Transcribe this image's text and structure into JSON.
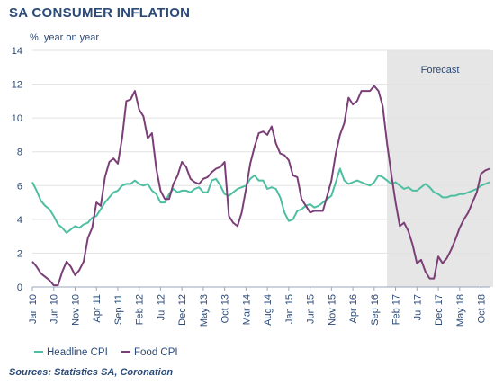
{
  "title": "SA CONSUMER INFLATION",
  "source": "Sources: Statistics SA, Coronation",
  "colors": {
    "headline": "#4dbfa0",
    "food": "#7b3f77",
    "forecast_shade": "#e6e6e6",
    "grid": "#e2e2e2",
    "text": "#2b4a78"
  },
  "chart_data": {
    "type": "line",
    "title": "SA CONSUMER INFLATION",
    "ylabel": "%, year on year",
    "ylim": [
      0,
      14
    ],
    "yticks": [
      0,
      2,
      4,
      6,
      8,
      10,
      12,
      14
    ],
    "xlim": [
      0,
      107
    ],
    "xticks": [
      {
        "i": 0,
        "label": "Jan 10"
      },
      {
        "i": 5,
        "label": "Jun 10"
      },
      {
        "i": 10,
        "label": "Nov 10"
      },
      {
        "i": 15,
        "label": "Apr 11"
      },
      {
        "i": 20,
        "label": "Sep 11"
      },
      {
        "i": 25,
        "label": "Feb 12"
      },
      {
        "i": 30,
        "label": "Jul 12"
      },
      {
        "i": 35,
        "label": "Dec 12"
      },
      {
        "i": 40,
        "label": "May 13"
      },
      {
        "i": 45,
        "label": "Oct 13"
      },
      {
        "i": 50,
        "label": "Mar 14"
      },
      {
        "i": 55,
        "label": "Aug 14"
      },
      {
        "i": 60,
        "label": "Jan 15"
      },
      {
        "i": 65,
        "label": "Jun 15"
      },
      {
        "i": 70,
        "label": "Nov 15"
      },
      {
        "i": 75,
        "label": "Apr 16"
      },
      {
        "i": 80,
        "label": "Sep 16"
      },
      {
        "i": 85,
        "label": "Feb 17"
      },
      {
        "i": 90,
        "label": "Jul 17"
      },
      {
        "i": 95,
        "label": "Dec 17"
      },
      {
        "i": 100,
        "label": "May 18"
      },
      {
        "i": 105,
        "label": "Oct 18"
      }
    ],
    "forecast": {
      "label": "Forecast",
      "start": 83,
      "end": 107
    },
    "grid": "horizontal",
    "legend": "bottom-left",
    "series": [
      {
        "name": "Headline CPI",
        "values": [
          6.2,
          5.7,
          5.1,
          4.8,
          4.6,
          4.2,
          3.7,
          3.5,
          3.2,
          3.4,
          3.6,
          3.5,
          3.7,
          3.8,
          4.1,
          4.2,
          4.6,
          5.0,
          5.3,
          5.6,
          5.7,
          6.0,
          6.1,
          6.1,
          6.3,
          6.1,
          6.0,
          6.1,
          5.7,
          5.5,
          5.0,
          5.0,
          5.5,
          5.8,
          5.6,
          5.7,
          5.7,
          5.6,
          5.8,
          5.9,
          5.6,
          5.6,
          6.3,
          6.4,
          6.0,
          5.5,
          5.4,
          5.6,
          5.8,
          5.9,
          6.0,
          6.4,
          6.6,
          6.3,
          6.3,
          5.8,
          5.9,
          5.8,
          5.3,
          4.4,
          3.9,
          4.0,
          4.5,
          4.6,
          4.8,
          4.9,
          4.7,
          4.8,
          5.0,
          5.2,
          5.4,
          6.2,
          7.0,
          6.3,
          6.1,
          6.2,
          6.3,
          6.2,
          6.1,
          6.0,
          6.2,
          6.6,
          6.5,
          6.3,
          6.1,
          6.2,
          6.0,
          5.8,
          5.9,
          5.7,
          5.7,
          5.9,
          6.1,
          5.9,
          5.6,
          5.5,
          5.3,
          5.3,
          5.4,
          5.4,
          5.5,
          5.5,
          5.6,
          5.7,
          5.8,
          6.0,
          6.1,
          6.2
        ]
      },
      {
        "name": "Food CPI",
        "values": [
          1.5,
          1.2,
          0.8,
          0.6,
          0.4,
          0.1,
          0.1,
          0.9,
          1.5,
          1.2,
          0.7,
          1.0,
          1.5,
          2.9,
          3.5,
          5.0,
          4.8,
          6.5,
          7.4,
          7.6,
          7.3,
          8.8,
          11.0,
          11.1,
          11.6,
          10.5,
          10.1,
          8.8,
          9.1,
          7.0,
          5.7,
          5.2,
          5.2,
          6.1,
          6.6,
          7.4,
          7.1,
          6.4,
          6.2,
          6.1,
          6.4,
          6.5,
          6.8,
          7.0,
          7.1,
          7.4,
          4.2,
          3.8,
          3.6,
          4.4,
          5.8,
          7.3,
          8.3,
          9.1,
          9.2,
          9.0,
          9.5,
          8.5,
          7.9,
          7.8,
          7.5,
          6.6,
          6.5,
          5.2,
          4.8,
          4.4,
          4.5,
          4.5,
          4.5,
          5.4,
          6.3,
          7.9,
          9.0,
          9.7,
          11.2,
          10.8,
          11.0,
          11.6,
          11.6,
          11.6,
          11.9,
          11.6,
          10.7,
          8.5,
          6.7,
          5.0,
          3.6,
          3.8,
          3.3,
          2.5,
          1.4,
          1.6,
          0.9,
          0.5,
          0.5,
          1.8,
          1.4,
          1.7,
          2.2,
          2.8,
          3.5,
          4.0,
          4.4,
          5.0,
          5.6,
          6.7,
          6.9,
          7.0
        ]
      }
    ]
  }
}
